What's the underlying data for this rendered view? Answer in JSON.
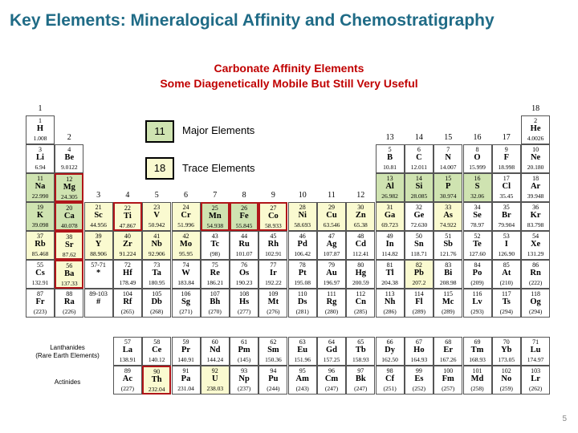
{
  "title": "Key Elements: Mineralogical Affinity and Chemostratigraphy",
  "subtitle_line1": "Carbonate Affinity Elements",
  "subtitle_line2": "Some Diagenetically Mobile But Still Very Useful",
  "legend": {
    "major_value": "11",
    "major_label": "Major Elements",
    "trace_value": "18",
    "trace_label": "Trace Elements"
  },
  "group_labels": [
    "1",
    "2",
    "3",
    "4",
    "5",
    "6",
    "7",
    "8",
    "9",
    "10",
    "11",
    "12",
    "13",
    "14",
    "15",
    "16",
    "17",
    "18"
  ],
  "lanthanides_label_1": "Lanthanides",
  "lanthanides_label_2": "(Rare Earth Elements)",
  "actinides_label": "Actinides",
  "slide_number": "5",
  "colors": {
    "title": "#1f6b86",
    "subtitle": "#c00000",
    "major": "#cfe3b1",
    "trace": "#fafad0",
    "highlight_border": "#b0161a"
  },
  "elements": [
    {
      "n": "1",
      "s": "H",
      "m": "1.008"
    },
    {
      "n": "2",
      "s": "He",
      "m": "4.0026"
    },
    {
      "n": "3",
      "s": "Li",
      "m": "6.94"
    },
    {
      "n": "4",
      "s": "Be",
      "m": "9.0122"
    },
    {
      "n": "5",
      "s": "B",
      "m": "10.81"
    },
    {
      "n": "6",
      "s": "C",
      "m": "12.011"
    },
    {
      "n": "7",
      "s": "N",
      "m": "14.007"
    },
    {
      "n": "8",
      "s": "O",
      "m": "15.999"
    },
    {
      "n": "9",
      "s": "F",
      "m": "18.998"
    },
    {
      "n": "10",
      "s": "Ne",
      "m": "20.180"
    },
    {
      "n": "11",
      "s": "Na",
      "m": "22.990"
    },
    {
      "n": "12",
      "s": "Mg",
      "m": "24.305"
    },
    {
      "n": "13",
      "s": "Al",
      "m": "26.982"
    },
    {
      "n": "14",
      "s": "Si",
      "m": "28.085"
    },
    {
      "n": "15",
      "s": "P",
      "m": "30.974"
    },
    {
      "n": "16",
      "s": "S",
      "m": "32.06"
    },
    {
      "n": "17",
      "s": "Cl",
      "m": "35.45"
    },
    {
      "n": "18",
      "s": "Ar",
      "m": "39.948"
    },
    {
      "n": "19",
      "s": "K",
      "m": "39.098"
    },
    {
      "n": "20",
      "s": "Ca",
      "m": "40.078"
    },
    {
      "n": "21",
      "s": "Sc",
      "m": "44.956"
    },
    {
      "n": "22",
      "s": "Ti",
      "m": "47.867"
    },
    {
      "n": "23",
      "s": "V",
      "m": "50.942"
    },
    {
      "n": "24",
      "s": "Cr",
      "m": "51.996"
    },
    {
      "n": "25",
      "s": "Mn",
      "m": "54.938"
    },
    {
      "n": "26",
      "s": "Fe",
      "m": "55.845"
    },
    {
      "n": "27",
      "s": "Co",
      "m": "58.933"
    },
    {
      "n": "28",
      "s": "Ni",
      "m": "58.693"
    },
    {
      "n": "29",
      "s": "Cu",
      "m": "63.546"
    },
    {
      "n": "30",
      "s": "Zn",
      "m": "65.38"
    },
    {
      "n": "31",
      "s": "Ga",
      "m": "69.723"
    },
    {
      "n": "32",
      "s": "Ge",
      "m": "72.630"
    },
    {
      "n": "33",
      "s": "As",
      "m": "74.922"
    },
    {
      "n": "34",
      "s": "Se",
      "m": "78.97"
    },
    {
      "n": "35",
      "s": "Br",
      "m": "79.904"
    },
    {
      "n": "36",
      "s": "Kr",
      "m": "83.798"
    },
    {
      "n": "37",
      "s": "Rb",
      "m": "85.468"
    },
    {
      "n": "38",
      "s": "Sr",
      "m": "87.62"
    },
    {
      "n": "39",
      "s": "Y",
      "m": "88.906"
    },
    {
      "n": "40",
      "s": "Zr",
      "m": "91.224"
    },
    {
      "n": "41",
      "s": "Nb",
      "m": "92.906"
    },
    {
      "n": "42",
      "s": "Mo",
      "m": "95.95"
    },
    {
      "n": "43",
      "s": "Tc",
      "m": "(98)"
    },
    {
      "n": "44",
      "s": "Ru",
      "m": "101.07"
    },
    {
      "n": "45",
      "s": "Rh",
      "m": "102.91"
    },
    {
      "n": "46",
      "s": "Pd",
      "m": "106.42"
    },
    {
      "n": "47",
      "s": "Ag",
      "m": "107.87"
    },
    {
      "n": "48",
      "s": "Cd",
      "m": "112.41"
    },
    {
      "n": "49",
      "s": "In",
      "m": "114.82"
    },
    {
      "n": "50",
      "s": "Sn",
      "m": "118.71"
    },
    {
      "n": "51",
      "s": "Sb",
      "m": "121.76"
    },
    {
      "n": "52",
      "s": "Te",
      "m": "127.60"
    },
    {
      "n": "53",
      "s": "I",
      "m": "126.90"
    },
    {
      "n": "54",
      "s": "Xe",
      "m": "131.29"
    },
    {
      "n": "55",
      "s": "Cs",
      "m": "132.91"
    },
    {
      "n": "56",
      "s": "Ba",
      "m": "137.33"
    },
    {
      "n": "57-71",
      "s": "*",
      "m": ""
    },
    {
      "n": "72",
      "s": "Hf",
      "m": "178.49"
    },
    {
      "n": "73",
      "s": "Ta",
      "m": "180.95"
    },
    {
      "n": "74",
      "s": "W",
      "m": "183.84"
    },
    {
      "n": "75",
      "s": "Re",
      "m": "186.21"
    },
    {
      "n": "76",
      "s": "Os",
      "m": "190.23"
    },
    {
      "n": "77",
      "s": "Ir",
      "m": "192.22"
    },
    {
      "n": "78",
      "s": "Pt",
      "m": "195.08"
    },
    {
      "n": "79",
      "s": "Au",
      "m": "196.97"
    },
    {
      "n": "80",
      "s": "Hg",
      "m": "200.59"
    },
    {
      "n": "81",
      "s": "Tl",
      "m": "204.38"
    },
    {
      "n": "82",
      "s": "Pb",
      "m": "207.2"
    },
    {
      "n": "83",
      "s": "Bi",
      "m": "208.98"
    },
    {
      "n": "84",
      "s": "Po",
      "m": "(209)"
    },
    {
      "n": "85",
      "s": "At",
      "m": "(210)"
    },
    {
      "n": "86",
      "s": "Rn",
      "m": "(222)"
    },
    {
      "n": "87",
      "s": "Fr",
      "m": "(223)"
    },
    {
      "n": "88",
      "s": "Ra",
      "m": "(226)"
    },
    {
      "n": "89-103",
      "s": "#",
      "m": ""
    },
    {
      "n": "104",
      "s": "Rf",
      "m": "(265)"
    },
    {
      "n": "105",
      "s": "Db",
      "m": "(268)"
    },
    {
      "n": "106",
      "s": "Sg",
      "m": "(271)"
    },
    {
      "n": "107",
      "s": "Bh",
      "m": "(270)"
    },
    {
      "n": "108",
      "s": "Hs",
      "m": "(277)"
    },
    {
      "n": "109",
      "s": "Mt",
      "m": "(276)"
    },
    {
      "n": "110",
      "s": "Ds",
      "m": "(281)"
    },
    {
      "n": "111",
      "s": "Rg",
      "m": "(280)"
    },
    {
      "n": "112",
      "s": "Cn",
      "m": "(285)"
    },
    {
      "n": "113",
      "s": "Nh",
      "m": "(286)"
    },
    {
      "n": "114",
      "s": "Fl",
      "m": "(289)"
    },
    {
      "n": "115",
      "s": "Mc",
      "m": "(289)"
    },
    {
      "n": "116",
      "s": "Lv",
      "m": "(293)"
    },
    {
      "n": "117",
      "s": "Ts",
      "m": "(294)"
    },
    {
      "n": "118",
      "s": "Og",
      "m": "(294)"
    },
    {
      "n": "57",
      "s": "La",
      "m": "138.91"
    },
    {
      "n": "58",
      "s": "Ce",
      "m": "140.12"
    },
    {
      "n": "59",
      "s": "Pr",
      "m": "140.91"
    },
    {
      "n": "60",
      "s": "Nd",
      "m": "144.24"
    },
    {
      "n": "61",
      "s": "Pm",
      "m": "(145)"
    },
    {
      "n": "62",
      "s": "Sm",
      "m": "150.36"
    },
    {
      "n": "63",
      "s": "Eu",
      "m": "151.96"
    },
    {
      "n": "64",
      "s": "Gd",
      "m": "157.25"
    },
    {
      "n": "65",
      "s": "Tb",
      "m": "158.93"
    },
    {
      "n": "66",
      "s": "Dy",
      "m": "162.50"
    },
    {
      "n": "67",
      "s": "Ho",
      "m": "164.93"
    },
    {
      "n": "68",
      "s": "Er",
      "m": "167.26"
    },
    {
      "n": "69",
      "s": "Tm",
      "m": "168.93"
    },
    {
      "n": "70",
      "s": "Yb",
      "m": "173.05"
    },
    {
      "n": "71",
      "s": "Lu",
      "m": "174.97"
    },
    {
      "n": "89",
      "s": "Ac",
      "m": "(227)"
    },
    {
      "n": "90",
      "s": "Th",
      "m": "232.04"
    },
    {
      "n": "91",
      "s": "Pa",
      "m": "231.04"
    },
    {
      "n": "92",
      "s": "U",
      "m": "238.03"
    },
    {
      "n": "93",
      "s": "Np",
      "m": "(237)"
    },
    {
      "n": "94",
      "s": "Pu",
      "m": "(244)"
    },
    {
      "n": "95",
      "s": "Am",
      "m": "(243)"
    },
    {
      "n": "96",
      "s": "Cm",
      "m": "(247)"
    },
    {
      "n": "97",
      "s": "Bk",
      "m": "(247)"
    },
    {
      "n": "98",
      "s": "Cf",
      "m": "(251)"
    },
    {
      "n": "99",
      "s": "Es",
      "m": "(252)"
    },
    {
      "n": "100",
      "s": "Fm",
      "m": "(257)"
    },
    {
      "n": "101",
      "s": "Md",
      "m": "(258)"
    },
    {
      "n": "102",
      "s": "No",
      "m": "(259)"
    },
    {
      "n": "103",
      "s": "Lr",
      "m": "(262)"
    }
  ],
  "major_elements": [
    "11",
    "12",
    "13",
    "14",
    "15",
    "16",
    "19",
    "20",
    "25",
    "26"
  ],
  "trace_elements": [
    "21",
    "22",
    "23",
    "24",
    "27",
    "28",
    "29",
    "30",
    "31",
    "33",
    "37",
    "38",
    "39",
    "40",
    "41",
    "42",
    "56",
    "82",
    "90",
    "92"
  ],
  "highlighted_elements": [
    "12",
    "20",
    "22",
    "25",
    "26",
    "27",
    "38",
    "56",
    "90"
  ]
}
